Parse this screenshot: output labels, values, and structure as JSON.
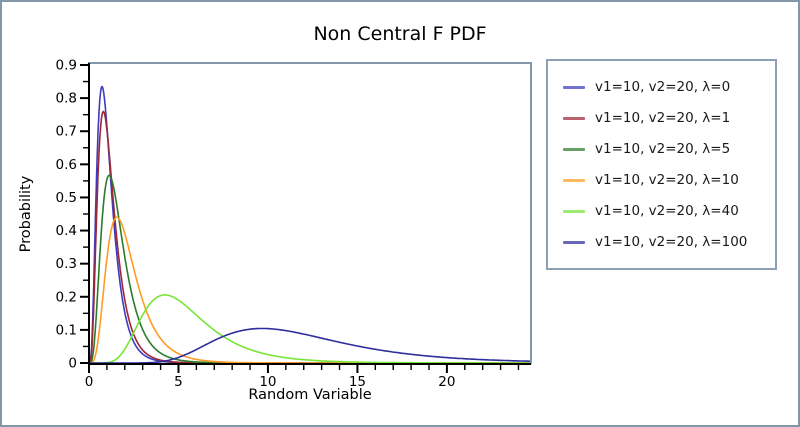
{
  "window": {
    "frame_color": "#8397ab",
    "background": "#ffffff",
    "axis_color": "#000000"
  },
  "chart_data": {
    "type": "line",
    "distribution": "noncentral F probability density",
    "title": "Non Central F PDF",
    "xlabel": "Random Variable",
    "ylabel": "Probability",
    "xlim": [
      0,
      24.7
    ],
    "ylim": [
      0,
      0.9
    ],
    "x_major_ticks": [
      0,
      5,
      10,
      15,
      20
    ],
    "x_minor_tick_step": 1,
    "y_major_ticks": [
      0,
      0.1,
      0.2,
      0.3,
      0.4,
      0.5,
      0.6,
      0.7,
      0.8,
      0.9
    ],
    "y_minor_tick_step": 0.05,
    "grid": false,
    "legend_position": "outside-right",
    "series": [
      {
        "label": "v1=10, v2=20, λ=0",
        "color": "#3c3cc0",
        "v1": 10,
        "v2": 20,
        "lambda": 0,
        "peak_x": 0.73,
        "peak_y": 0.835
      },
      {
        "label": "v1=10, v2=20, λ=1",
        "color": "#9c2737",
        "v1": 10,
        "v2": 20,
        "lambda": 1,
        "peak_x": 0.95,
        "peak_y": 0.755
      },
      {
        "label": "v1=10, v2=20, λ=5",
        "color": "#2a7c2a",
        "v1": 10,
        "v2": 20,
        "lambda": 5,
        "peak_x": 1.3,
        "peak_y": 0.565
      },
      {
        "label": "v1=10, v2=20, λ=10",
        "color": "#ff9c22",
        "v1": 10,
        "v2": 20,
        "lambda": 10,
        "peak_x": 1.8,
        "peak_y": 0.44
      },
      {
        "label": "v1=10, v2=20, λ=40",
        "color": "#78e537",
        "v1": 10,
        "v2": 20,
        "lambda": 40,
        "peak_x": 4.25,
        "peak_y": 0.195
      },
      {
        "label": "v1=10, v2=20, λ=100",
        "color": "#2e2e9d",
        "v1": 10,
        "v2": 20,
        "lambda": 100,
        "peak_x": 9.7,
        "peak_y": 0.105
      }
    ]
  }
}
